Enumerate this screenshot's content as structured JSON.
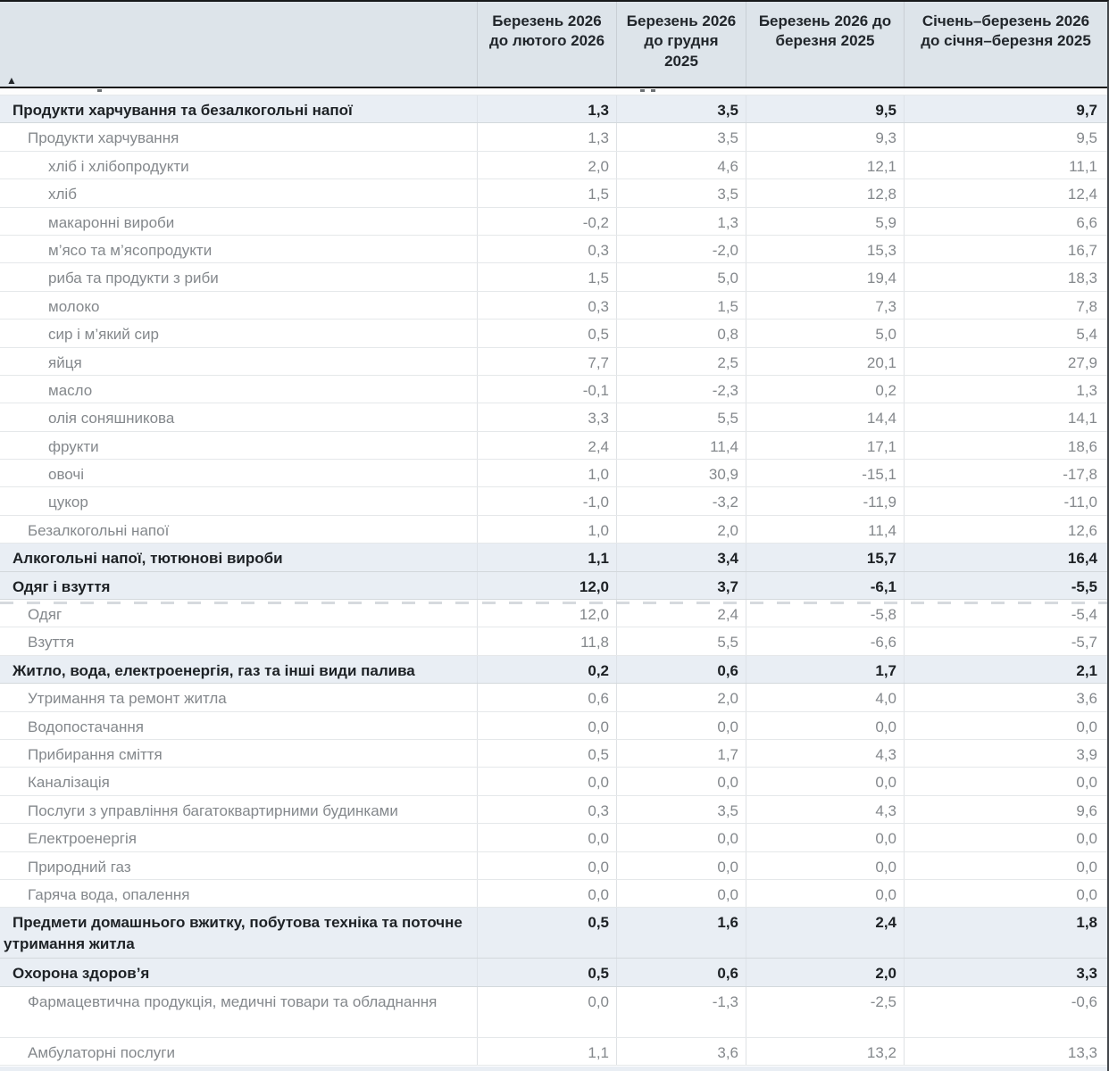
{
  "table": {
    "sort_indicator": "▲",
    "columns": [
      {
        "label": "Березень 2026 до лютого 2026"
      },
      {
        "label": "Березень 2026 до грудня 2025"
      },
      {
        "label": "Березень 2026 до березня 2025"
      },
      {
        "label": "Січень–березень 2026 до січня–березня 2025"
      }
    ],
    "rows": [
      {
        "label": "Продукти харчування та безалкогольні напої",
        "level": 0,
        "section": true,
        "values": [
          "1,3",
          "3,5",
          "9,5",
          "9,7"
        ]
      },
      {
        "label": "Продукти харчування",
        "level": 1,
        "section": false,
        "values": [
          "1,3",
          "3,5",
          "9,3",
          "9,5"
        ]
      },
      {
        "label": "хліб і хлібопродукти",
        "level": 2,
        "section": false,
        "values": [
          "2,0",
          "4,6",
          "12,1",
          "11,1"
        ]
      },
      {
        "label": "хліб",
        "level": 2,
        "section": false,
        "values": [
          "1,5",
          "3,5",
          "12,8",
          "12,4"
        ]
      },
      {
        "label": "макаронні вироби",
        "level": 2,
        "section": false,
        "values": [
          "-0,2",
          "1,3",
          "5,9",
          "6,6"
        ]
      },
      {
        "label": "м’ясо та м’ясопродукти",
        "level": 2,
        "section": false,
        "values": [
          "0,3",
          "-2,0",
          "15,3",
          "16,7"
        ]
      },
      {
        "label": "риба та продукти з риби",
        "level": 2,
        "section": false,
        "values": [
          "1,5",
          "5,0",
          "19,4",
          "18,3"
        ]
      },
      {
        "label": "молоко",
        "level": 2,
        "section": false,
        "values": [
          "0,3",
          "1,5",
          "7,3",
          "7,8"
        ]
      },
      {
        "label": "сир і м’який сир",
        "level": 2,
        "section": false,
        "values": [
          "0,5",
          "0,8",
          "5,0",
          "5,4"
        ]
      },
      {
        "label": "яйця",
        "level": 2,
        "section": false,
        "values": [
          "7,7",
          "2,5",
          "20,1",
          "27,9"
        ]
      },
      {
        "label": "масло",
        "level": 2,
        "section": false,
        "values": [
          "-0,1",
          "-2,3",
          "0,2",
          "1,3"
        ]
      },
      {
        "label": "олія соняшникова",
        "level": 2,
        "section": false,
        "values": [
          "3,3",
          "5,5",
          "14,4",
          "14,1"
        ]
      },
      {
        "label": "фрукти",
        "level": 2,
        "section": false,
        "values": [
          "2,4",
          "11,4",
          "17,1",
          "18,6"
        ]
      },
      {
        "label": "овочі",
        "level": 2,
        "section": false,
        "values": [
          "1,0",
          "30,9",
          "-15,1",
          "-17,8"
        ]
      },
      {
        "label": "цукор",
        "level": 2,
        "section": false,
        "values": [
          "-1,0",
          "-3,2",
          "-11,9",
          "-11,0"
        ]
      },
      {
        "label": "Безалкогольні напої",
        "level": 1,
        "section": false,
        "values": [
          "1,0",
          "2,0",
          "11,4",
          "12,6"
        ]
      },
      {
        "label": "Алкогольні напої, тютюнові вироби",
        "level": 0,
        "section": true,
        "values": [
          "1,1",
          "3,4",
          "15,7",
          "16,4"
        ]
      },
      {
        "label": "Одяг і взуття",
        "level": 0,
        "section": true,
        "values": [
          "12,0",
          "3,7",
          "-6,1",
          "-5,5"
        ]
      },
      {
        "label": "Одяг",
        "level": 1,
        "section": false,
        "dashed": true,
        "values": [
          "12,0",
          "2,4",
          "-5,8",
          "-5,4"
        ]
      },
      {
        "label": "Взуття",
        "level": 1,
        "section": false,
        "values": [
          "11,8",
          "5,5",
          "-6,6",
          "-5,7"
        ]
      },
      {
        "label": "Житло, вода, електроенергія, газ та інші види палива",
        "level": 0,
        "section": true,
        "values": [
          "0,2",
          "0,6",
          "1,7",
          "2,1"
        ]
      },
      {
        "label": "Утримання та ремонт житла",
        "level": 1,
        "section": false,
        "values": [
          "0,6",
          "2,0",
          "4,0",
          "3,6"
        ]
      },
      {
        "label": "Водопостачання",
        "level": 1,
        "section": false,
        "values": [
          "0,0",
          "0,0",
          "0,0",
          "0,0"
        ]
      },
      {
        "label": "Прибирання сміття",
        "level": 1,
        "section": false,
        "values": [
          "0,5",
          "1,7",
          "4,3",
          "3,9"
        ]
      },
      {
        "label": "Каналізація",
        "level": 1,
        "section": false,
        "values": [
          "0,0",
          "0,0",
          "0,0",
          "0,0"
        ]
      },
      {
        "label": "Послуги з управління багатоквартирними будинками",
        "level": 1,
        "section": false,
        "values": [
          "0,3",
          "3,5",
          "4,3",
          "9,6"
        ]
      },
      {
        "label": "Електроенергія",
        "level": 1,
        "section": false,
        "values": [
          "0,0",
          "0,0",
          "0,0",
          "0,0"
        ]
      },
      {
        "label": "Природний газ",
        "level": 1,
        "section": false,
        "values": [
          "0,0",
          "0,0",
          "0,0",
          "0,0"
        ]
      },
      {
        "label": "Гаряча вода, опалення",
        "level": 1,
        "section": false,
        "values": [
          "0,0",
          "0,0",
          "0,0",
          "0,0"
        ]
      },
      {
        "label": "Предмети домашнього вжитку, побутова техніка та поточне утримання житла",
        "level": 0,
        "section": true,
        "tall": true,
        "values": [
          "0,5",
          "1,6",
          "2,4",
          "1,8"
        ]
      },
      {
        "label": "Охорона здоров’я",
        "level": 0,
        "section": true,
        "values": [
          "0,5",
          "0,6",
          "2,0",
          "3,3"
        ]
      },
      {
        "label": "Фармацевтична продукція, медичні товари та обладнання",
        "level": 1,
        "section": false,
        "tall": true,
        "values": [
          "0,0",
          "-1,3",
          "-2,5",
          "-0,6"
        ]
      },
      {
        "label": "Амбулаторні послуги",
        "level": 1,
        "section": false,
        "values": [
          "1,1",
          "3,6",
          "13,2",
          "13,3"
        ]
      }
    ]
  },
  "colors": {
    "header_bg": "#dde4ea",
    "section_row_bg": "#e9eef4",
    "regular_text": "#84888c",
    "section_text": "#1d2125",
    "dark_border": "#16181a"
  }
}
